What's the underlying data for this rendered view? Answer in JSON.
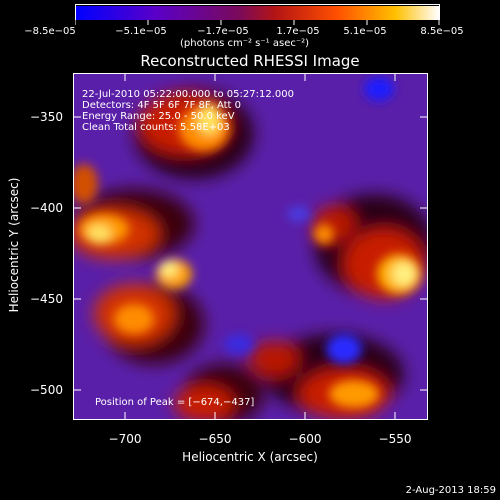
{
  "colorbar": {
    "tick_labels": [
      "−8.5e−05",
      "−5.1e−05",
      "−1.7e−05",
      "1.7e−05",
      "5.1e−05",
      "8.5e−05"
    ],
    "units_text": "(photons cm⁻² s⁻¹ asec⁻²)",
    "colors": [
      "#0000ff",
      "#6a0dad",
      "#8b0000",
      "#ff4500",
      "#ffd700",
      "#ffffff"
    ]
  },
  "title": "Reconstructed RHESSI Image",
  "info": {
    "line1": "22-Jul-2010 05:22:00.000 to 05:27:12.000",
    "line2": "Detectors: 4F 5F 6F 7F 8F, Att 0",
    "line3": "Energy Range: 25.0 - 50.0 keV",
    "line4": "Clean     Total counts: 5.58E+03"
  },
  "peak_text": "Position of Peak = [−674,−437]",
  "x_axis": {
    "label": "Heliocentric X (arcsec)",
    "ticks": [
      "−700",
      "−650",
      "−600",
      "−550"
    ]
  },
  "y_axis": {
    "label": "Heliocentric Y (arcsec)",
    "ticks": [
      "−350",
      "−400",
      "−450",
      "−500"
    ]
  },
  "footer": "2-Aug-2013 18:59"
}
